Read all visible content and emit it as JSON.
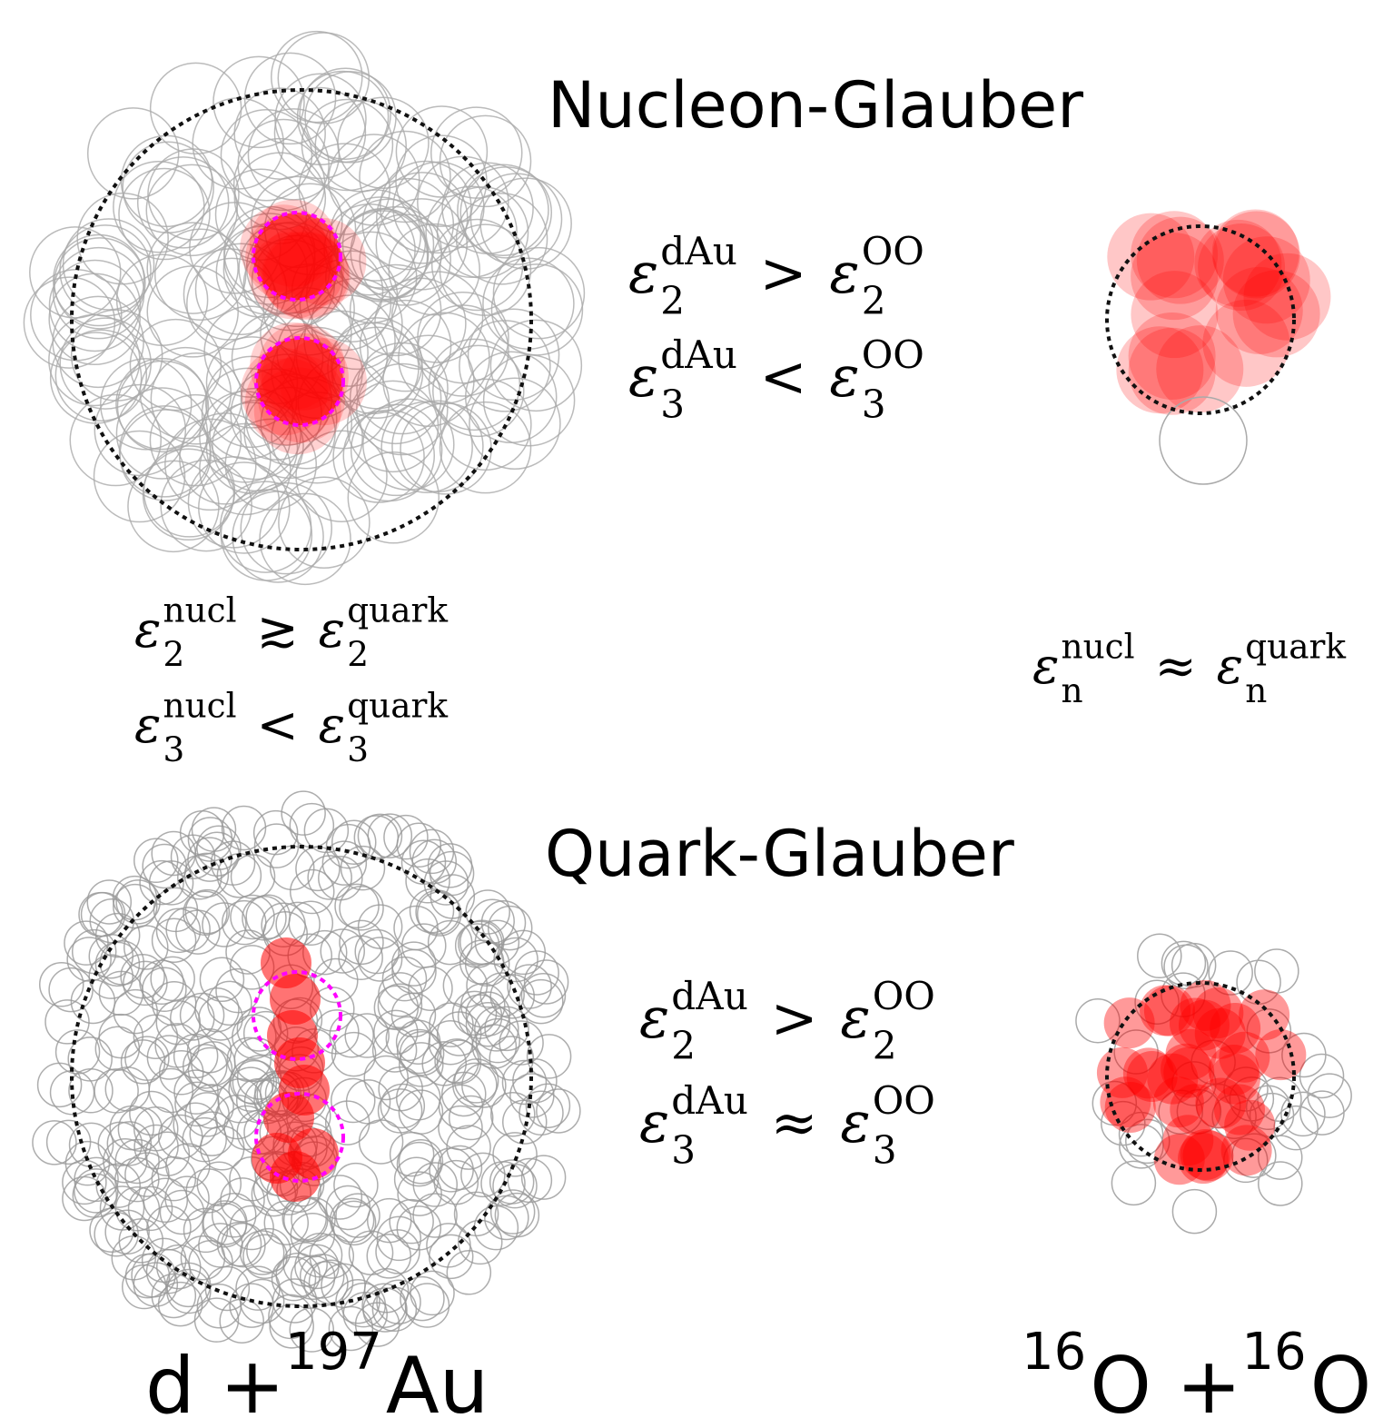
{
  "titles": {
    "nucleon": "Nucleon-Glauber",
    "quark": "Quark-Glauber"
  },
  "relations": [
    {
      "lhs": {
        "base": "ε",
        "sub": "2",
        "sup": "dAu"
      },
      "op": ">",
      "rhs": {
        "base": "ε",
        "sub": "2",
        "sup": "OO"
      }
    },
    {
      "lhs": {
        "base": "ε",
        "sub": "3",
        "sup": "dAu"
      },
      "op": "<",
      "rhs": {
        "base": "ε",
        "sub": "3",
        "sup": "OO"
      }
    },
    {
      "lhs": {
        "base": "ε",
        "sub": "2",
        "sup": "nucl"
      },
      "op": "≳",
      "rhs": {
        "base": "ε",
        "sub": "2",
        "sup": "quark"
      }
    },
    {
      "lhs": {
        "base": "ε",
        "sub": "3",
        "sup": "nucl"
      },
      "op": "<",
      "rhs": {
        "base": "ε",
        "sub": "3",
        "sup": "quark"
      }
    },
    {
      "lhs": {
        "base": "ε",
        "sub": "n",
        "sup": "nucl"
      },
      "op": "≈",
      "rhs": {
        "base": "ε",
        "sub": "n",
        "sup": "quark"
      }
    },
    {
      "lhs": {
        "base": "ε",
        "sub": "2",
        "sup": "dAu"
      },
      "op": ">",
      "rhs": {
        "base": "ε",
        "sub": "2",
        "sup": "OO"
      }
    },
    {
      "lhs": {
        "base": "ε",
        "sub": "3",
        "sup": "dAu"
      },
      "op": "≈",
      "rhs": {
        "base": "ε",
        "sub": "3",
        "sup": "OO"
      }
    }
  ],
  "systems": [
    [
      {
        "text": "d + "
      },
      {
        "sup": "197"
      },
      {
        "text": "Au"
      }
    ],
    [
      {
        "sup": "16"
      },
      {
        "text": "O + "
      },
      {
        "sup": "16"
      },
      {
        "text": "O"
      }
    ]
  ]
}
